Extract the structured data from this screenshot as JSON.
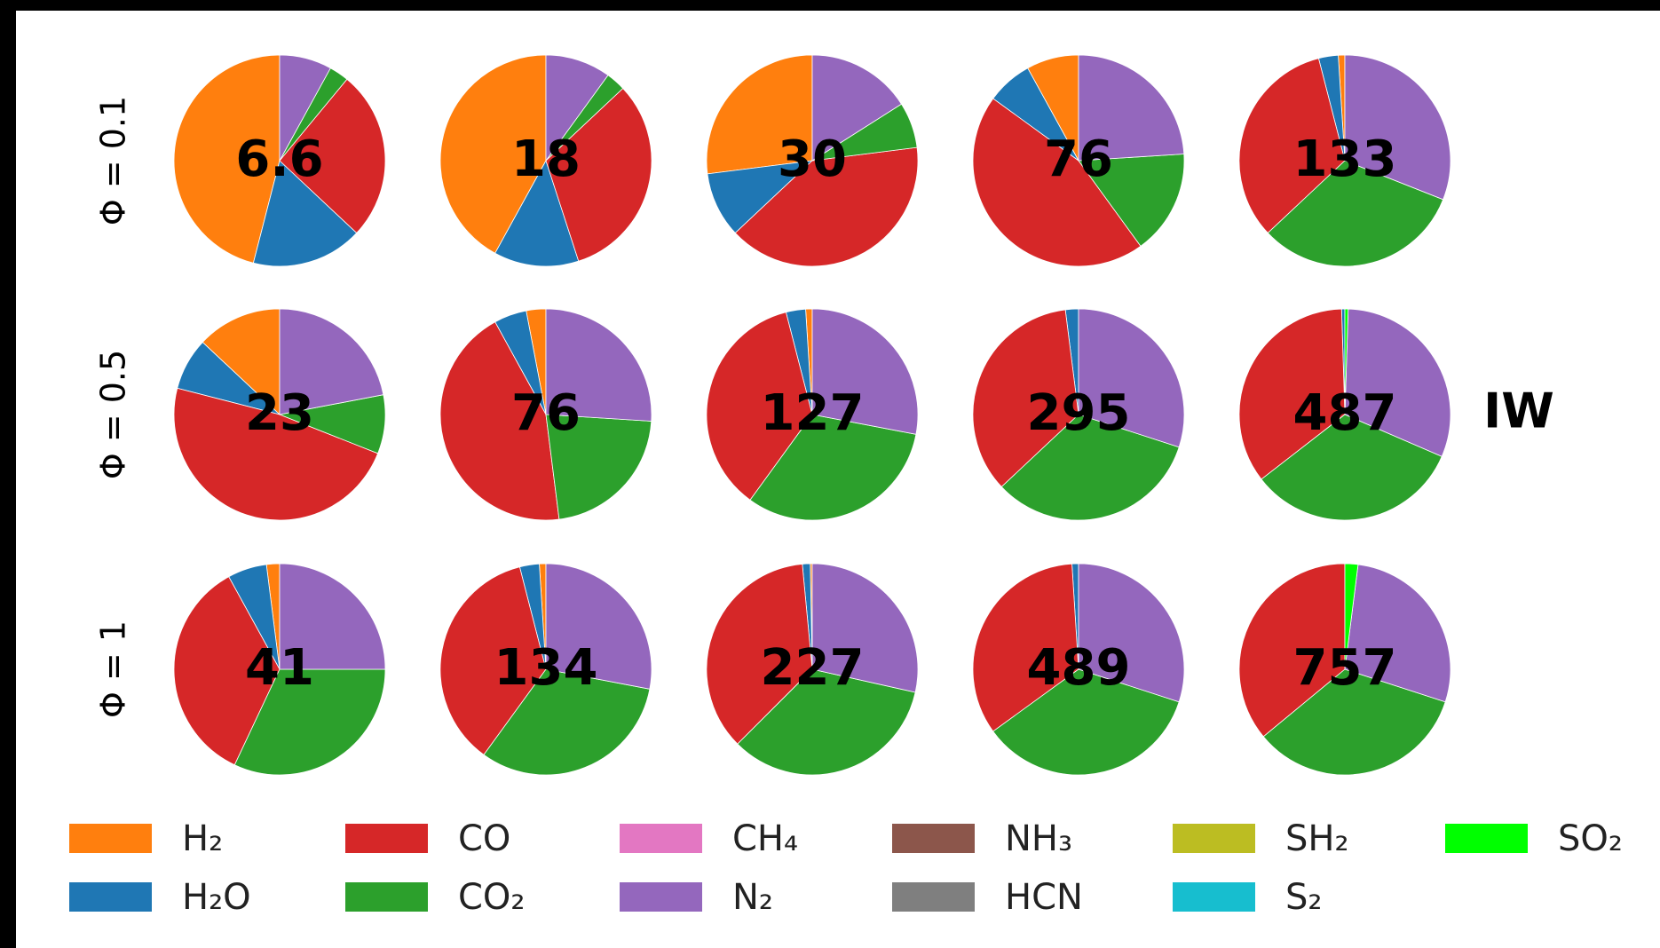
{
  "row_labels": [
    "Φ = 0.1",
    "Φ = 0.5",
    "Φ = 1"
  ],
  "annotation": "IW",
  "legend": {
    "series": [
      {
        "name": "H₂",
        "color": "#ff7f0e"
      },
      {
        "name": "H₂O",
        "color": "#1f77b4"
      },
      {
        "name": "CO",
        "color": "#d62728"
      },
      {
        "name": "CO₂",
        "color": "#2ca02c"
      },
      {
        "name": "CH₄",
        "color": "#e377c2"
      },
      {
        "name": "N₂",
        "color": "#9467bd"
      },
      {
        "name": "NH₃",
        "color": "#8c564b"
      },
      {
        "name": "HCN",
        "color": "#7f7f7f"
      },
      {
        "name": "SH₂",
        "color": "#bcbd22"
      },
      {
        "name": "S₂",
        "color": "#17becf"
      },
      {
        "name": "SO₂",
        "color": "#00ff00"
      }
    ]
  },
  "chart_data": [
    {
      "type": "pie",
      "label": "6.6",
      "values": [
        46,
        17,
        26,
        3,
        0,
        8,
        0,
        0,
        0,
        0,
        0
      ]
    },
    {
      "type": "pie",
      "label": "18",
      "values": [
        42,
        13,
        32,
        3,
        0,
        10,
        0,
        0,
        0,
        0,
        0
      ]
    },
    {
      "type": "pie",
      "label": "30",
      "values": [
        27,
        10,
        40,
        7,
        0,
        16,
        0,
        0,
        0,
        0,
        0
      ]
    },
    {
      "type": "pie",
      "label": "76",
      "values": [
        8,
        7,
        45,
        16,
        0,
        24,
        0,
        0,
        0,
        0,
        0
      ]
    },
    {
      "type": "pie",
      "label": "133",
      "values": [
        1,
        3,
        33,
        32,
        0,
        31,
        0,
        0,
        0,
        0,
        0
      ]
    },
    {
      "type": "pie",
      "label": "23",
      "values": [
        13,
        8,
        48,
        9,
        0,
        22,
        0,
        0,
        0,
        0,
        0
      ]
    },
    {
      "type": "pie",
      "label": "76",
      "values": [
        3,
        5,
        44,
        22,
        0,
        26,
        0,
        0,
        0,
        0,
        0
      ]
    },
    {
      "type": "pie",
      "label": "127",
      "values": [
        1,
        3,
        36,
        32,
        0,
        28,
        0,
        0,
        0,
        0,
        0
      ]
    },
    {
      "type": "pie",
      "label": "295",
      "values": [
        0,
        2,
        35,
        33,
        0,
        30,
        0,
        0,
        0,
        0,
        0
      ]
    },
    {
      "type": "pie",
      "label": "487",
      "values": [
        0,
        0.5,
        35,
        33,
        0,
        31,
        0,
        0,
        0,
        0,
        0.5
      ]
    },
    {
      "type": "pie",
      "label": "41",
      "values": [
        2,
        6,
        35,
        32,
        0,
        25,
        0,
        0,
        0,
        0,
        0
      ]
    },
    {
      "type": "pie",
      "label": "134",
      "values": [
        1,
        3,
        36,
        32,
        0,
        28,
        0,
        0,
        0,
        0,
        0
      ]
    },
    {
      "type": "pie",
      "label": "227",
      "values": [
        0.3,
        1.2,
        36,
        34,
        0,
        28.5,
        0,
        0,
        0,
        0,
        0
      ]
    },
    {
      "type": "pie",
      "label": "489",
      "values": [
        0,
        1,
        34,
        35,
        0,
        30,
        0,
        0,
        0,
        0,
        0
      ]
    },
    {
      "type": "pie",
      "label": "757",
      "values": [
        0,
        0,
        36,
        34,
        0,
        28,
        0,
        0,
        0,
        0,
        2
      ]
    }
  ]
}
